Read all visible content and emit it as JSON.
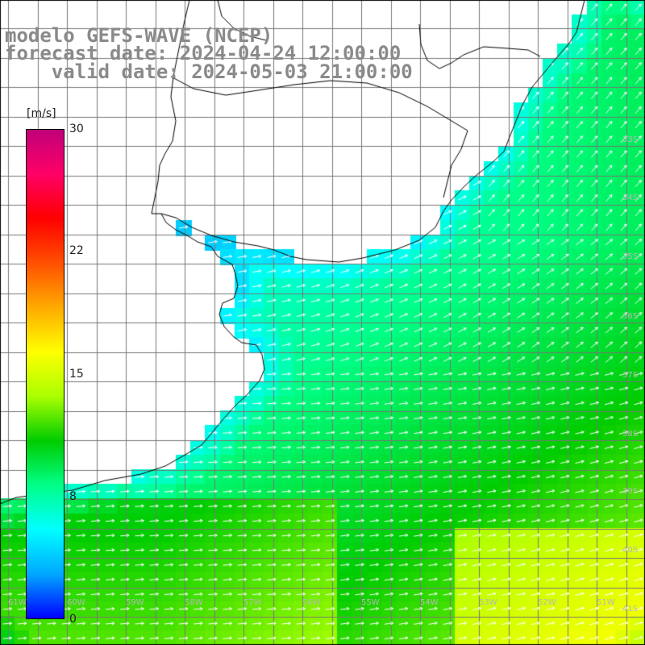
{
  "title": {
    "line1": "modelo GEFS-WAVE (NCEP)",
    "line2": "forecast date: 2024-04-24 12:00:00",
    "line3": "    valid date: 2024-05-03 21:00:00"
  },
  "colorbar": {
    "unit": "[m/s]",
    "min": 0,
    "max": 30,
    "ticks": [
      "30",
      "22",
      "15",
      "8",
      "0"
    ],
    "tick_values": [
      30,
      22,
      15,
      8,
      0
    ],
    "colors": [
      "#0000ff",
      "#00a8ff",
      "#00ffff",
      "#00ff88",
      "#00cc00",
      "#aaff00",
      "#ffff00",
      "#ffaa00",
      "#ff5000",
      "#ff0000",
      "#ff0066",
      "#c0007a"
    ]
  },
  "axes": {
    "lat_labels": [
      "33S",
      "34S",
      "35S",
      "36S",
      "37S",
      "38S",
      "39S",
      "40S",
      "41S"
    ],
    "lon_labels": [
      "61W",
      "60W",
      "59W",
      "58W",
      "57W",
      "56W",
      "55W",
      "54W",
      "53W",
      "52W",
      "51W"
    ]
  },
  "colors": {
    "land": "#ffffff",
    "grid": "#777777",
    "coast": "#000000",
    "arrow": "#ffffff",
    "title": "#8a8a8a"
  }
}
